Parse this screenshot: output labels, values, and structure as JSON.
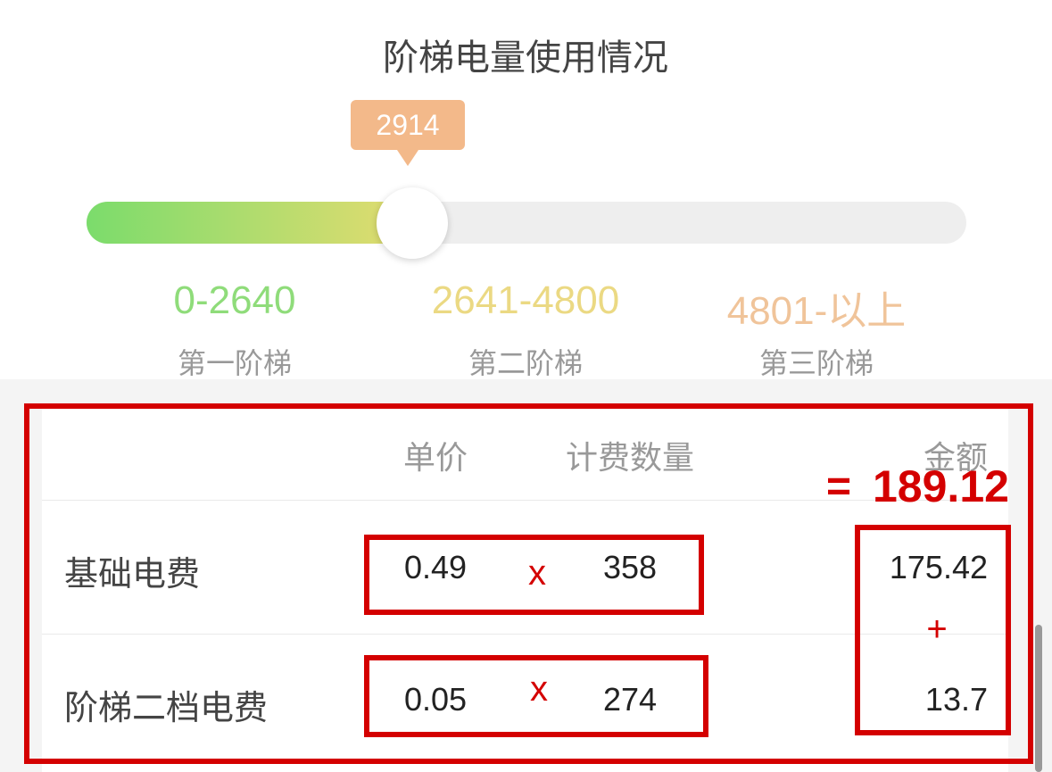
{
  "header": {
    "title": "阶梯电量使用情况"
  },
  "slider": {
    "value": "2914"
  },
  "tiers": [
    {
      "range": "0-2640",
      "label": "第一阶梯"
    },
    {
      "range": "2641-4800",
      "label": "第二阶梯"
    },
    {
      "range": "4801-以上",
      "label": "第三阶梯"
    }
  ],
  "table": {
    "columns": [
      "单价",
      "计费数量",
      "金额"
    ],
    "rows": [
      [
        "基础电费",
        "0.49",
        "358",
        "175.42"
      ],
      [
        "阶梯二档电费",
        "0.05",
        "274",
        "13.7"
      ]
    ]
  },
  "annotations": {
    "multiply": [
      "x",
      "x"
    ],
    "plus": "+",
    "equals": "=",
    "total": "189.12"
  }
}
